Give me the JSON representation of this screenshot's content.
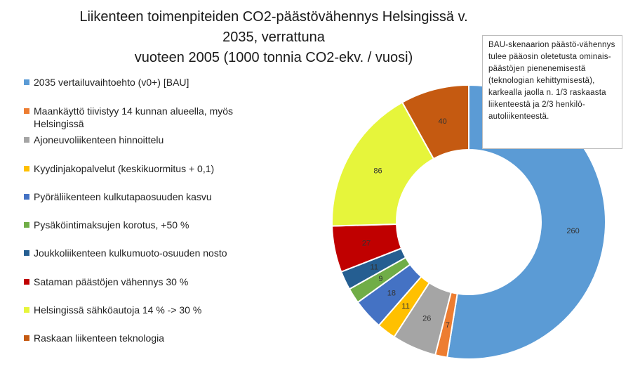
{
  "title": {
    "line1": "Liikenteen toimenpiteiden CO2-päästövähennys Helsingissä v. 2035, verrattuna",
    "line2": "vuoteen 2005 (1000 tonnia CO2-ekv. / vuosi)"
  },
  "note": {
    "text": "BAU-skenaarion päästö-vähennys tulee pääosin oletetusta ominais-päästöjen pienenemisestä (teknologian kehittymisestä), karkealla jaolla n. 1/3 raskaasta liikenteestä ja 2/3 henkilö-autoliikenteestä."
  },
  "chart_data": {
    "type": "pie",
    "subtype": "doughnut",
    "title": "Liikenteen toimenpiteiden CO2-päästövähennys Helsingissä v. 2035, verrattuna vuoteen 2005 (1000 tonnia CO2-ekv. / vuosi)",
    "legend_position": "left",
    "categories": [
      "2035 vertailuvaihtoehto (v0+) [BAU]",
      "Maankäyttö tiivistyy 14 kunnan alueella, myös Helsingissä",
      "Ajoneuvoliikenteen hinnoittelu",
      "Kyydinjakopalvelut (keskikuormitus + 0,1)",
      "Pyöräliikenteen kulkutapaosuuden kasvu",
      "Pysäköintimaksujen korotus, +50 %",
      "Joukkoliikenteen kulkumuoto-osuuden nosto",
      "Sataman päästöjen vähennys 30 %",
      "Helsingissä sähköautoja 14 % -> 30 %",
      "Raskaan liikenteen teknologia"
    ],
    "values": [
      260,
      7,
      26,
      11,
      18,
      9,
      11,
      27,
      86,
      40
    ],
    "labels": [
      "260",
      "7",
      "26",
      "11",
      "18",
      "9",
      "11",
      "27",
      "86",
      "40"
    ],
    "colors": [
      "#5b9bd5",
      "#ed7d31",
      "#a5a5a5",
      "#ffc000",
      "#4472c4",
      "#70ad47",
      "#255e91",
      "#c00000",
      "#e6f53b",
      "#c55a11"
    ],
    "label_colors": [
      "#333333",
      "#333333",
      "#333333",
      "#333333",
      "#333333",
      "#333333",
      "#333333",
      "#333333",
      "#333333",
      "#333333"
    ]
  }
}
